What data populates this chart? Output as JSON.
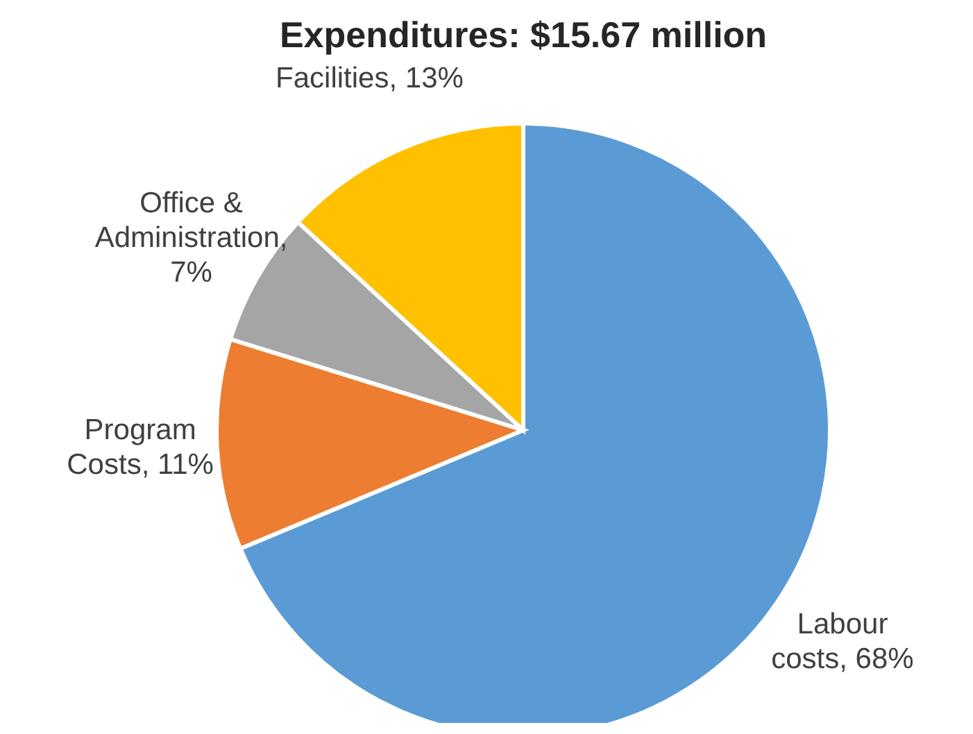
{
  "chart_data": {
    "type": "pie",
    "title": "Expenditures: $15.67 million",
    "categories": [
      "Labour costs, 68%",
      "Program Costs, 11%",
      "Office & Administration, 7%",
      "Facilities, 13%"
    ],
    "values": [
      68,
      11,
      7,
      13
    ],
    "colors": [
      "#5b9bd5",
      "#ed7d31",
      "#a5a5a5",
      "#ffc000"
    ]
  }
}
